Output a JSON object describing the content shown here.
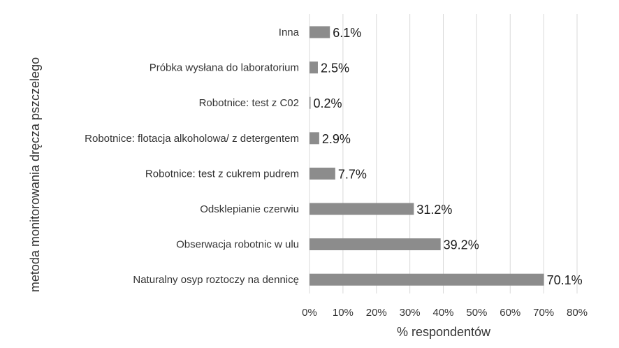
{
  "chart_data": {
    "type": "bar",
    "orientation": "horizontal",
    "categories": [
      "Inna",
      "Próbka wysłana do laboratorium",
      "Robotnice: test z C02",
      "Robotnice: flotacja alkoholowa/ z detergentem",
      "Robotnice: test z cukrem pudrem",
      "Odsklepianie czerwiu",
      "Obserwacja robotnic w ulu",
      "Naturalny osyp roztoczy na dennicę"
    ],
    "values": [
      6.1,
      2.5,
      0.2,
      2.9,
      7.7,
      31.2,
      39.2,
      70.1
    ],
    "data_labels": [
      "6.1%",
      "2.5%",
      "0.2%",
      "2.9%",
      "7.7%",
      "31.2%",
      "39.2%",
      "70.1%"
    ],
    "xlabel": "% respondentów",
    "ylabel": "metoda monitorowania dręcza pszczelego",
    "xlim": [
      0,
      80
    ],
    "xticks": [
      0,
      10,
      20,
      30,
      40,
      50,
      60,
      70,
      80
    ],
    "xtick_labels": [
      "0%",
      "10%",
      "20%",
      "30%",
      "40%",
      "50%",
      "60%",
      "70%",
      "80%"
    ],
    "grid": "vertical",
    "bar_color": "#8c8c8c",
    "grid_color": "#d9d9d9"
  }
}
